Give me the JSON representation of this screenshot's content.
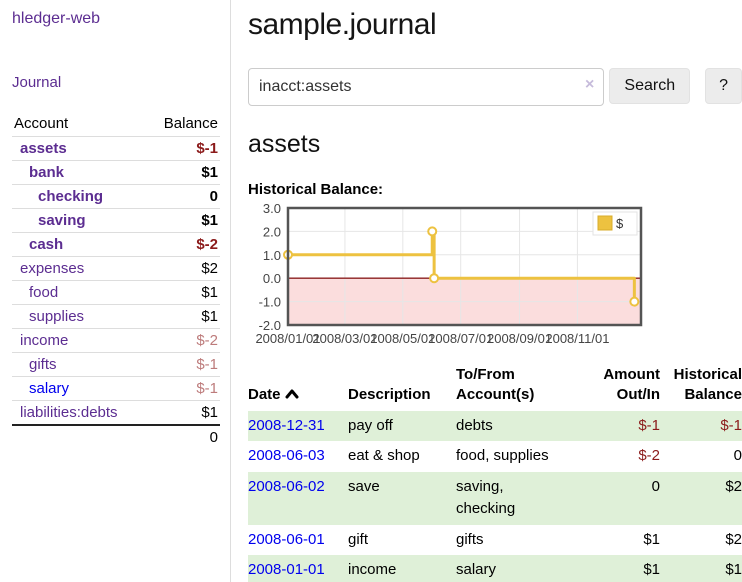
{
  "sidebar": {
    "brand": "hledger-web",
    "nav": {
      "journal_label": "Journal"
    },
    "accounts_table": {
      "account_header": "Account",
      "balance_header": "Balance",
      "rows": [
        {
          "name": "assets",
          "balance": "$-1",
          "indent": 1,
          "bold": true,
          "tone": "neg-strong",
          "link": "purple"
        },
        {
          "name": "bank",
          "balance": "$1",
          "indent": 2,
          "bold": true,
          "tone": "normal",
          "link": "purple"
        },
        {
          "name": "checking",
          "balance": "0",
          "indent": 3,
          "bold": true,
          "tone": "normal",
          "link": "purple"
        },
        {
          "name": "saving",
          "balance": "$1",
          "indent": 3,
          "bold": true,
          "tone": "normal",
          "link": "purple"
        },
        {
          "name": "cash",
          "balance": "$-2",
          "indent": 2,
          "bold": true,
          "tone": "neg-strong",
          "link": "purple"
        },
        {
          "name": "expenses",
          "balance": "$2",
          "indent": 1,
          "bold": false,
          "tone": "normal",
          "link": "purple"
        },
        {
          "name": "food",
          "balance": "$1",
          "indent": 2,
          "bold": false,
          "tone": "normal",
          "link": "purple"
        },
        {
          "name": "supplies",
          "balance": "$1",
          "indent": 2,
          "bold": false,
          "tone": "normal",
          "link": "purple"
        },
        {
          "name": "income",
          "balance": "$-2",
          "indent": 1,
          "bold": false,
          "tone": "neg-soft",
          "link": "purple"
        },
        {
          "name": "gifts",
          "balance": "$-1",
          "indent": 2,
          "bold": false,
          "tone": "neg-soft",
          "link": "purple"
        },
        {
          "name": "salary",
          "balance": "$-1",
          "indent": 2,
          "bold": false,
          "tone": "neg-soft",
          "link": "blue"
        },
        {
          "name": "liabilities:debts",
          "balance": "$1",
          "indent": 1,
          "bold": false,
          "tone": "normal",
          "link": "purple"
        }
      ],
      "total": "0"
    }
  },
  "main": {
    "title": "sample.journal",
    "search": {
      "value": "inacct:assets",
      "clear_icon": "×",
      "button_label": "Search",
      "help_label": "?"
    },
    "account_heading": "assets",
    "chart_label": "Historical Balance:",
    "register": {
      "headers": [
        "Date",
        "Description",
        "To/From Account(s)",
        "Amount Out/In",
        "Historical Balance"
      ],
      "rows": [
        {
          "date": "2008-12-31",
          "description": "pay off",
          "accounts": "debts",
          "amount": "$-1",
          "balance": "$-1",
          "amount_neg": true,
          "balance_neg": true
        },
        {
          "date": "2008-06-03",
          "description": "eat & shop",
          "accounts": "food, supplies",
          "amount": "$-2",
          "balance": "0",
          "amount_neg": true,
          "balance_neg": false
        },
        {
          "date": "2008-06-02",
          "description": "save",
          "accounts": "saving, checking",
          "amount": "0",
          "balance": "$2",
          "amount_neg": false,
          "balance_neg": false
        },
        {
          "date": "2008-06-01",
          "description": "gift",
          "accounts": "gifts",
          "amount": "$1",
          "balance": "$2",
          "amount_neg": false,
          "balance_neg": false
        },
        {
          "date": "2008-01-01",
          "description": "income",
          "accounts": "salary",
          "amount": "$1",
          "balance": "$1",
          "amount_neg": false,
          "balance_neg": false
        }
      ]
    }
  },
  "chart_data": {
    "type": "line",
    "step": true,
    "title": "Historical Balance:",
    "series": [
      {
        "name": "$",
        "points": [
          {
            "date": "2008-01-01",
            "day": 0,
            "value": 1
          },
          {
            "date": "2008-06-01",
            "day": 152,
            "value": 2
          },
          {
            "date": "2008-06-03",
            "day": 154,
            "value": 0
          },
          {
            "date": "2008-12-31",
            "day": 365,
            "value": -1
          }
        ]
      }
    ],
    "y_ticks": [
      {
        "label": "3.0",
        "value": 3
      },
      {
        "label": "2.0",
        "value": 2
      },
      {
        "label": "1.0",
        "value": 1
      },
      {
        "label": "0.0",
        "value": 0
      },
      {
        "label": "-1.0",
        "value": -1
      },
      {
        "label": "-2.0",
        "value": -2
      }
    ],
    "x_ticks": [
      {
        "label": "2008/01/01",
        "day": 0
      },
      {
        "label": "2008/03/01",
        "day": 60
      },
      {
        "label": "2008/05/01",
        "day": 121
      },
      {
        "label": "2008/07/01",
        "day": 182
      },
      {
        "label": "2008/09/01",
        "day": 244
      },
      {
        "label": "2008/11/01",
        "day": 305
      }
    ],
    "ylim": [
      -2,
      3
    ],
    "xlim_days": [
      0,
      372
    ],
    "grid": true,
    "legend_position": "top-right",
    "colors": {
      "series": "#edc240",
      "series_border": "#d8ac2b",
      "marker_fill": "#ffffff",
      "negative_region": "#fbdddd",
      "zero_line": "#8b1f1f",
      "grid_line": "#e6e6e6",
      "plot_border": "#545454",
      "tick_text": "#444444"
    }
  },
  "colors": {
    "link_purple": "#5c2d91",
    "link_blue": "#0000ee",
    "neg_strong": "#8b1a1a",
    "neg_soft": "#bd7b7b",
    "row_green": "#dff0d8"
  }
}
